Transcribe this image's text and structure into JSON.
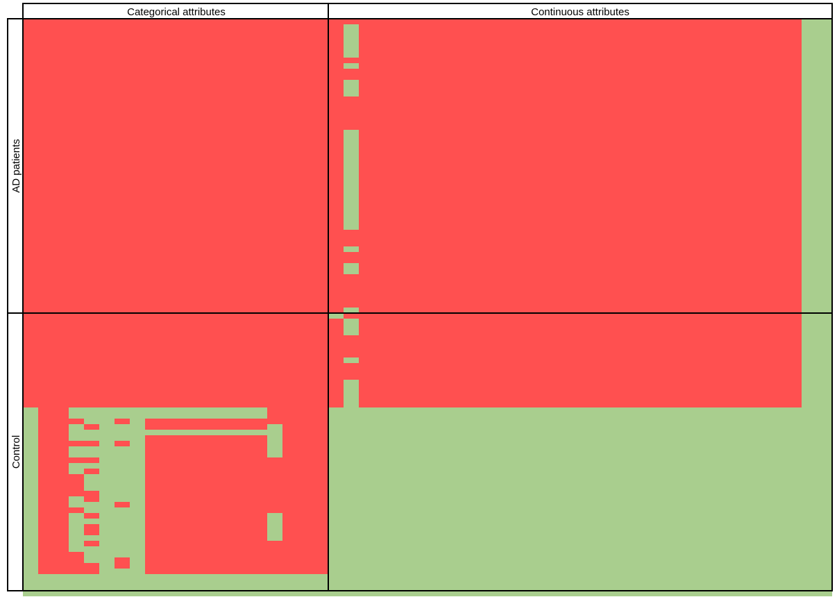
{
  "chart_data": {
    "type": "heatmap",
    "column_headers": [
      "Categorical attributes",
      "Continuous attributes"
    ],
    "row_headers": [
      "AD patients",
      "Control"
    ],
    "colors": {
      "red": "#FF5050",
      "green": "#A9CE8E",
      "border": "#000000"
    },
    "grid": {
      "rows": 104,
      "cols": 53,
      "ad_rows": 53,
      "categorical_cols": 20
    },
    "base_pattern": [
      {
        "rows": [
          0,
          52
        ],
        "cols": [
          0,
          50
        ],
        "value": "red"
      },
      {
        "rows": [
          0,
          52
        ],
        "cols": [
          51,
          52
        ],
        "value": "green"
      },
      {
        "rows": [
          53,
          69
        ],
        "cols": [
          0,
          50
        ],
        "value": "red"
      },
      {
        "rows": [
          53,
          69
        ],
        "cols": [
          51,
          52
        ],
        "value": "green"
      },
      {
        "rows": [
          70,
          103
        ],
        "cols": [
          0,
          52
        ],
        "value": "green"
      },
      {
        "rows": [
          70,
          99
        ],
        "cols": [
          1,
          19
        ],
        "value": "red"
      }
    ],
    "green_cells": [
      {
        "rows": [
          1,
          6
        ],
        "cols": [
          21,
          21
        ]
      },
      {
        "rows": [
          8,
          8
        ],
        "cols": [
          21,
          21
        ]
      },
      {
        "rows": [
          11,
          13
        ],
        "cols": [
          21,
          21
        ]
      },
      {
        "rows": [
          20,
          37
        ],
        "cols": [
          21,
          21
        ]
      },
      {
        "rows": [
          41,
          41
        ],
        "cols": [
          21,
          21
        ]
      },
      {
        "rows": [
          44,
          45
        ],
        "cols": [
          21,
          21
        ]
      },
      {
        "rows": [
          52,
          52
        ],
        "cols": [
          21,
          21
        ]
      },
      {
        "rows": [
          53,
          53
        ],
        "cols": [
          20,
          20
        ]
      },
      {
        "rows": [
          54,
          56
        ],
        "cols": [
          21,
          21
        ]
      },
      {
        "rows": [
          61,
          61
        ],
        "cols": [
          21,
          21
        ]
      },
      {
        "rows": [
          65,
          69
        ],
        "cols": [
          21,
          21
        ]
      },
      {
        "rows": [
          70,
          99
        ],
        "cols": [
          3,
          7
        ]
      },
      {
        "rows": [
          70,
          71
        ],
        "cols": [
          8,
          15
        ]
      },
      {
        "rows": [
          74,
          74
        ],
        "cols": [
          8,
          15
        ]
      },
      {
        "rows": [
          73,
          78
        ],
        "cols": [
          16,
          16
        ]
      },
      {
        "rows": [
          89,
          93
        ],
        "cols": [
          16,
          16
        ]
      }
    ],
    "red_cells": [
      {
        "rows": [
          72,
          72
        ],
        "cols": [
          3,
          3
        ]
      },
      {
        "rows": [
          73,
          73
        ],
        "cols": [
          4,
          4
        ]
      },
      {
        "rows": [
          76,
          76
        ],
        "cols": [
          3,
          3
        ]
      },
      {
        "rows": [
          76,
          76
        ],
        "cols": [
          4,
          4
        ]
      },
      {
        "rows": [
          79,
          79
        ],
        "cols": [
          3,
          4
        ]
      },
      {
        "rows": [
          81,
          81
        ],
        "cols": [
          4,
          4
        ]
      },
      {
        "rows": [
          82,
          85
        ],
        "cols": [
          3,
          3
        ]
      },
      {
        "rows": [
          85,
          86
        ],
        "cols": [
          4,
          4
        ]
      },
      {
        "rows": [
          88,
          88
        ],
        "cols": [
          3,
          3
        ]
      },
      {
        "rows": [
          89,
          89
        ],
        "cols": [
          4,
          4
        ]
      },
      {
        "rows": [
          91,
          92
        ],
        "cols": [
          4,
          4
        ]
      },
      {
        "rows": [
          94,
          94
        ],
        "cols": [
          4,
          4
        ]
      },
      {
        "rows": [
          96,
          99
        ],
        "cols": [
          3,
          3
        ]
      },
      {
        "rows": [
          98,
          99
        ],
        "cols": [
          4,
          4
        ]
      },
      {
        "rows": [
          72,
          72
        ],
        "cols": [
          6,
          6
        ]
      },
      {
        "rows": [
          76,
          76
        ],
        "cols": [
          6,
          6
        ]
      },
      {
        "rows": [
          87,
          87
        ],
        "cols": [
          6,
          6
        ]
      },
      {
        "rows": [
          97,
          98
        ],
        "cols": [
          6,
          6
        ]
      }
    ]
  }
}
